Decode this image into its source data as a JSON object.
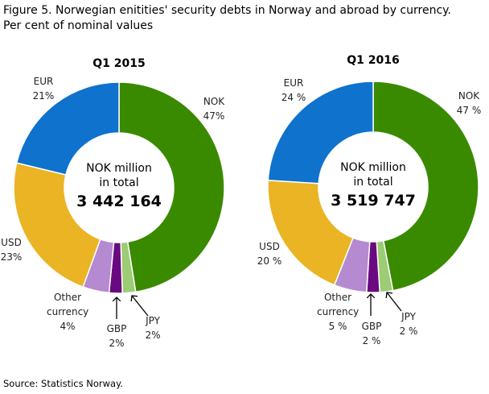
{
  "title": "Figure 5. Norwegian enitities' security debts in Norway and abroad by currency.",
  "subtitle": "Per cent of nominal values",
  "source": "Source: Statistics Norway.",
  "chart_data": [
    {
      "type": "donut",
      "title": "Q1 2015",
      "center_text": [
        "NOK million",
        "in total"
      ],
      "total": {
        "value": 3442164,
        "label": "3 442 164"
      },
      "categories": [
        "NOK",
        "JPY",
        "GBP",
        "Other currency",
        "USD",
        "EUR"
      ],
      "values": [
        47,
        2,
        2,
        4,
        23,
        21
      ],
      "value_labels": [
        "47%",
        "2%",
        "2%",
        "4%",
        "23%",
        "21%"
      ],
      "colors": [
        "#3a8a00",
        "#9ccc74",
        "#6a0a80",
        "#b58ad0",
        "#eab425",
        "#0f72cc"
      ]
    },
    {
      "type": "donut",
      "title": "Q1 2016",
      "center_text": [
        "NOK million",
        "in total"
      ],
      "total": {
        "value": 3519747,
        "label": "3 519 747"
      },
      "categories": [
        "NOK",
        "JPY",
        "GBP",
        "Other currency",
        "USD",
        "EUR"
      ],
      "values": [
        47,
        2,
        2,
        5,
        20,
        24
      ],
      "value_labels": [
        "47 %",
        "2 %",
        "2 %",
        "5 %",
        "20 %",
        "24 %"
      ],
      "colors": [
        "#3a8a00",
        "#9ccc74",
        "#6a0a80",
        "#b58ad0",
        "#eab425",
        "#0f72cc"
      ]
    }
  ]
}
